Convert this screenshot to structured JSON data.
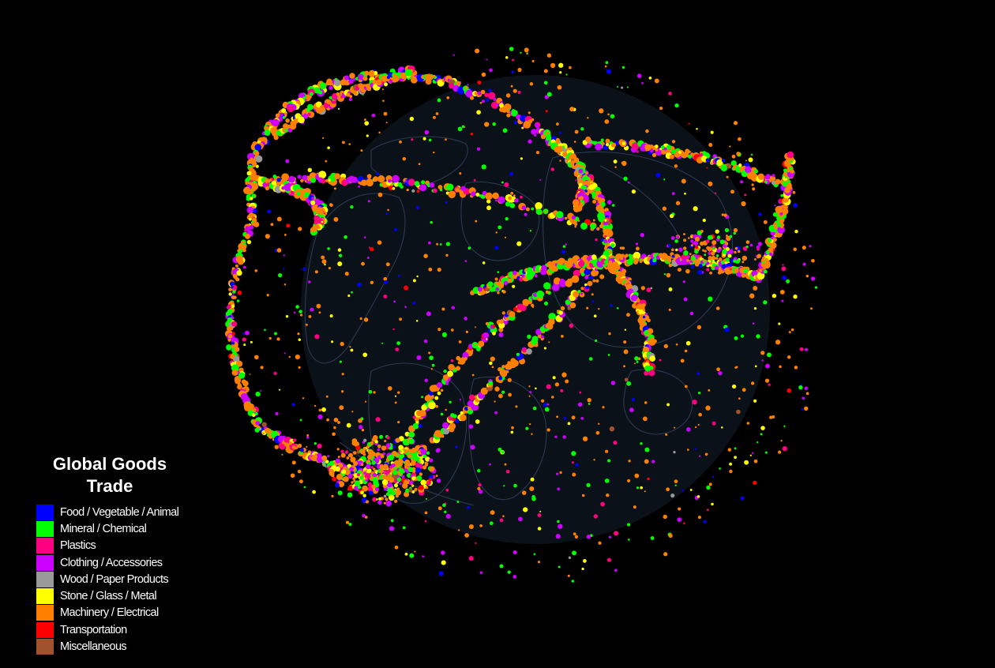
{
  "legend": {
    "title_line1": "Global Goods",
    "title_line2": "Trade",
    "items": [
      {
        "label": "Food / Vegetable / Animal",
        "color": "#0000ff"
      },
      {
        "label": "Mineral / Chemical",
        "color": "#00ff00"
      },
      {
        "label": "Plastics",
        "color": "#ff0080"
      },
      {
        "label": "Clothing / Accessories",
        "color": "#cc00ff"
      },
      {
        "label": "Wood / Paper Products",
        "color": "#999999"
      },
      {
        "label": "Stone / Glass / Metal",
        "color": "#ffff00"
      },
      {
        "label": "Machinery / Electrical",
        "color": "#ff8000"
      },
      {
        "label": "Transportation",
        "color": "#ff0000"
      },
      {
        "label": "Miscellaneous",
        "color": "#a0522d"
      }
    ]
  },
  "colors": {
    "background": "#000000",
    "globe_fill": "#0b1118",
    "coastline": "#2a3a52"
  }
}
